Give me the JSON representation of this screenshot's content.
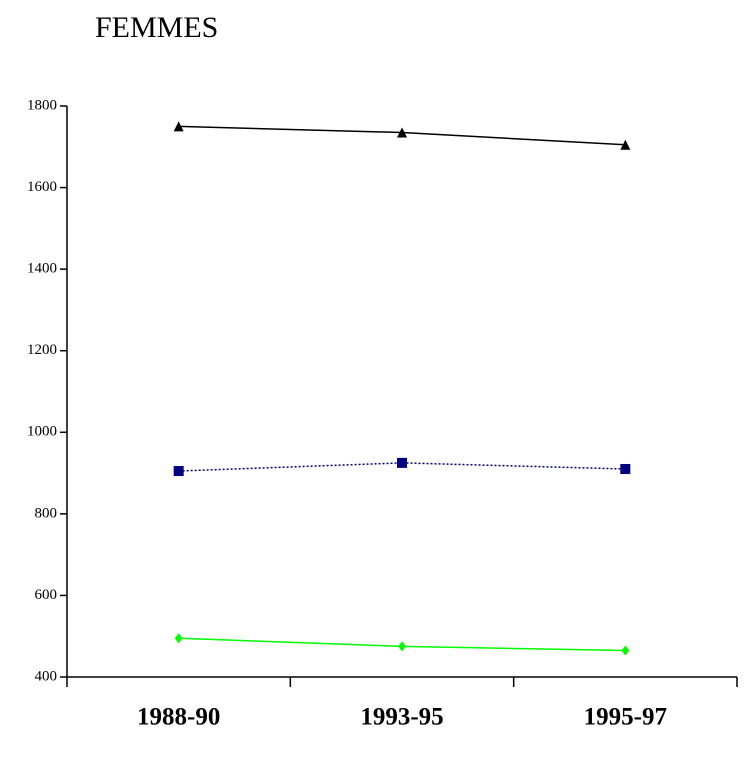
{
  "chart_data": {
    "type": "line",
    "title": "FEMMES",
    "categories": [
      "1988-90",
      "1993-95",
      "1995-97"
    ],
    "series": [
      {
        "color": "#000000",
        "marker": "triangle",
        "dash": "solid",
        "values": [
          1750,
          1735,
          1705
        ]
      },
      {
        "color": "#000080",
        "marker": "square",
        "dash": "dotted",
        "values": [
          905,
          925,
          910
        ]
      },
      {
        "color": "#00ff00",
        "marker": "diamond",
        "dash": "solid",
        "values": [
          495,
          475,
          465
        ]
      }
    ],
    "ylim": [
      400,
      1800
    ],
    "yticks": [
      400,
      600,
      800,
      1000,
      1200,
      1400,
      1600,
      1800
    ],
    "grid": false
  }
}
